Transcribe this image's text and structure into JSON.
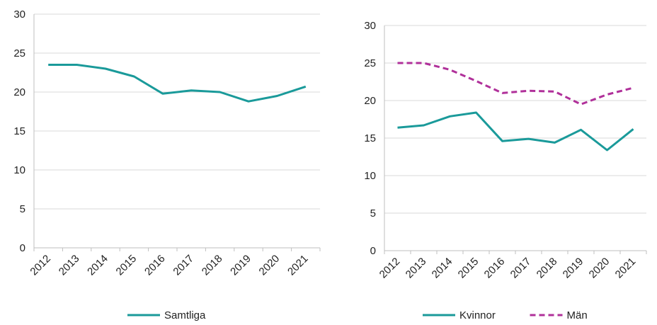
{
  "chart_data": [
    {
      "type": "line",
      "x": [
        "2012",
        "2013",
        "2014",
        "2015",
        "2016",
        "2017",
        "2018",
        "2019",
        "2020",
        "2021"
      ],
      "ylim": [
        0,
        30
      ],
      "yticks": [
        0,
        5,
        10,
        15,
        20,
        25,
        30
      ],
      "grid": true,
      "legend_position": "bottom",
      "series": [
        {
          "name": "Samtliga",
          "style": "solid",
          "color": "#1a9a9a",
          "values": [
            23.5,
            23.5,
            23.0,
            22.0,
            19.8,
            20.2,
            20.0,
            18.8,
            19.5,
            20.7
          ]
        }
      ]
    },
    {
      "type": "line",
      "x": [
        "2012",
        "2013",
        "2014",
        "2015",
        "2016",
        "2017",
        "2018",
        "2019",
        "2020",
        "2021"
      ],
      "ylim": [
        0,
        30
      ],
      "yticks": [
        0,
        5,
        10,
        15,
        20,
        25,
        30
      ],
      "grid": true,
      "legend_position": "bottom",
      "series": [
        {
          "name": "Kvinnor",
          "style": "solid",
          "color": "#1a9a9a",
          "values": [
            16.4,
            16.7,
            17.9,
            18.4,
            14.6,
            14.9,
            14.4,
            16.1,
            13.4,
            16.2
          ]
        },
        {
          "name": "Män",
          "style": "dashed",
          "color": "#b0309a",
          "values": [
            25.0,
            25.0,
            24.1,
            22.6,
            21.0,
            21.3,
            21.2,
            19.5,
            20.8,
            21.7
          ]
        }
      ]
    }
  ]
}
